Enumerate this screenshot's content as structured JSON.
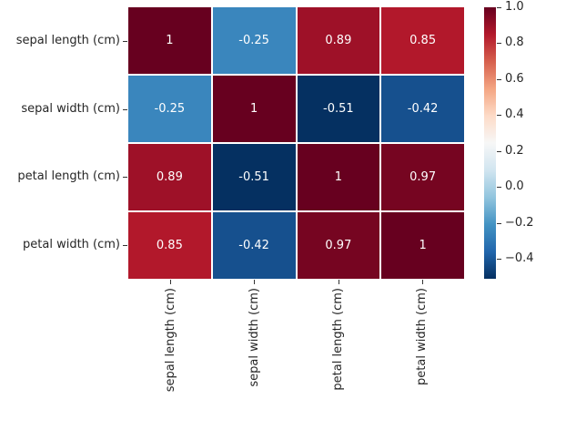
{
  "figure": {
    "background_color": "#ffffff",
    "text_color": "#262626",
    "tick_color": "#333333",
    "cell_gap_color": "#ffffff"
  },
  "chart_data": {
    "type": "heatmap",
    "title": "",
    "xlabel": "",
    "ylabel": "",
    "x_tick_labels": [
      "sepal length (cm)",
      "sepal width (cm)",
      "petal length (cm)",
      "petal width (cm)"
    ],
    "y_tick_labels": [
      "sepal length (cm)",
      "sepal width (cm)",
      "petal length (cm)",
      "petal width (cm)"
    ],
    "matrix": [
      [
        1.0,
        -0.25,
        0.89,
        0.85
      ],
      [
        -0.25,
        1.0,
        -0.51,
        -0.42
      ],
      [
        0.89,
        -0.51,
        1.0,
        0.97
      ],
      [
        0.85,
        -0.42,
        0.97,
        1.0
      ]
    ],
    "cell_labels": [
      [
        "1",
        "-0.25",
        "0.89",
        "0.85"
      ],
      [
        "-0.25",
        "1",
        "-0.51",
        "-0.42"
      ],
      [
        "0.89",
        "-0.51",
        "1",
        "0.97"
      ],
      [
        "0.85",
        "-0.42",
        "0.97",
        "1"
      ]
    ],
    "annotation_color": "#ffffff",
    "vmin": -0.51,
    "vmax": 1.0,
    "grid": false,
    "colormap": {
      "name": "RdBu_r",
      "stops": [
        "#053061",
        "#2166ac",
        "#4393c3",
        "#92c5de",
        "#d1e5f0",
        "#f7f7f7",
        "#fddbc7",
        "#f4a582",
        "#d6604d",
        "#b2182b",
        "#67001f"
      ]
    },
    "colorbar": {
      "position": "right",
      "tick_labels": [
        "1.0",
        "0.8",
        "0.6",
        "0.4",
        "0.2",
        "0.0",
        "−0.2",
        "−0.4"
      ],
      "tick_values": [
        1.0,
        0.8,
        0.6,
        0.4,
        0.2,
        0.0,
        -0.2,
        -0.4
      ]
    }
  }
}
